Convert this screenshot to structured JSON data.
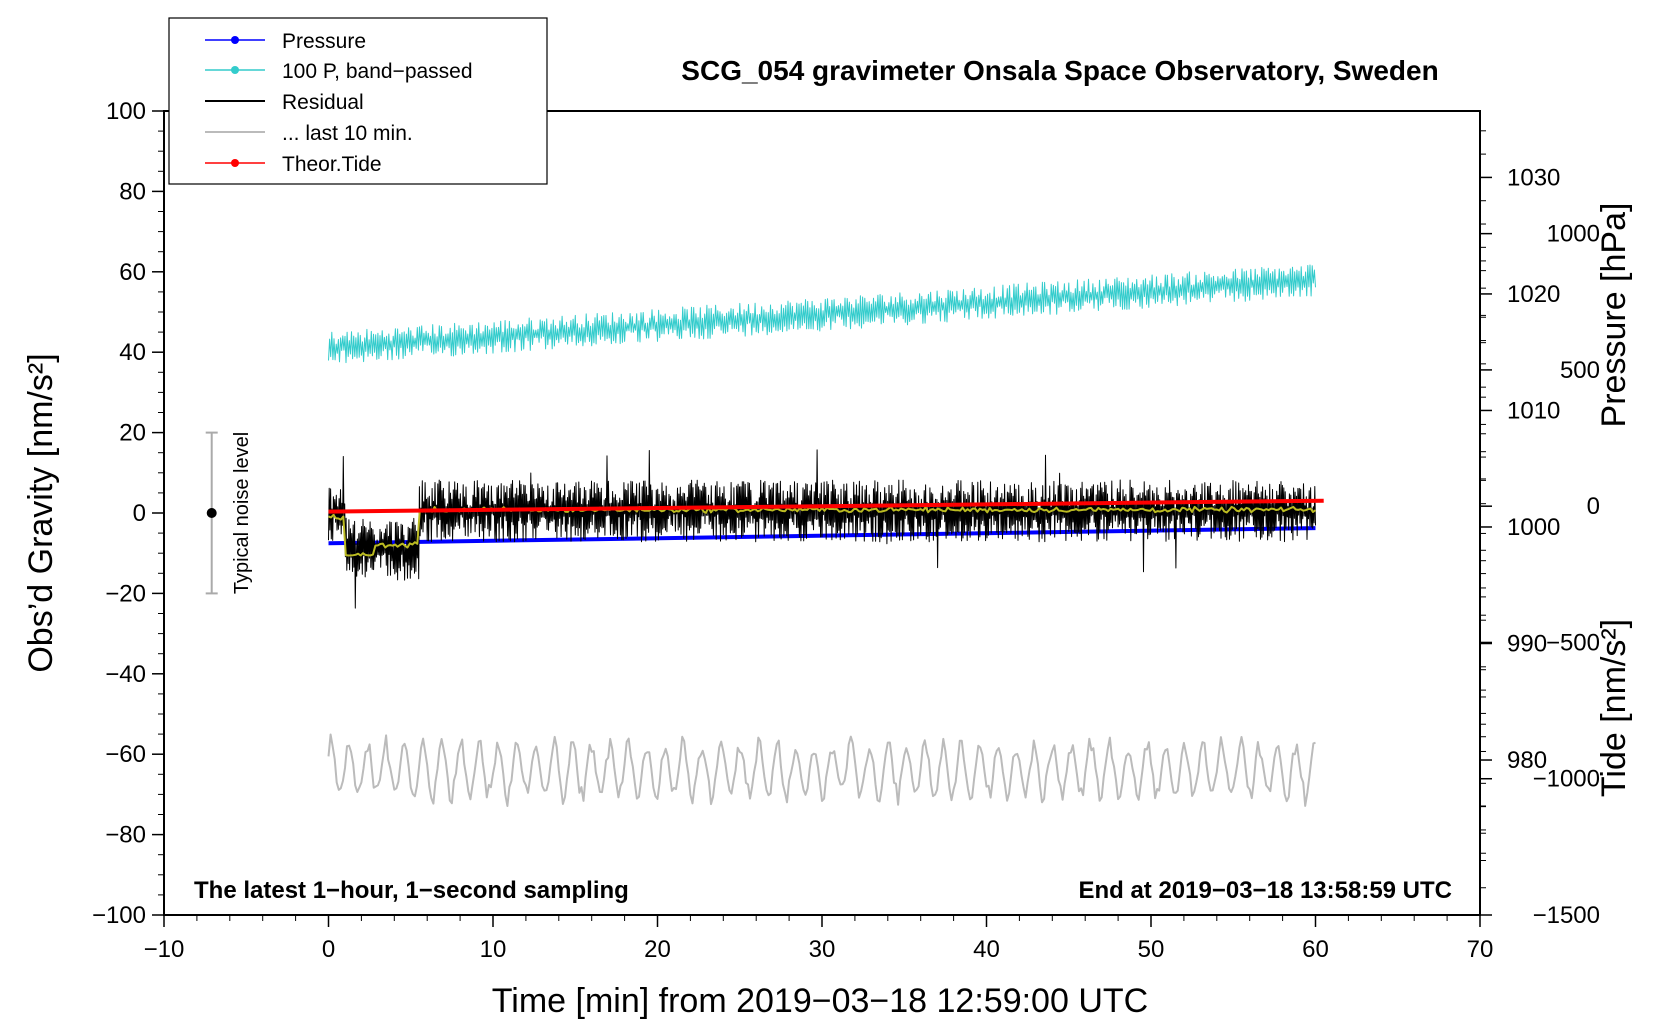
{
  "chart_data": {
    "type": "line",
    "title": "SCG_054 gravimeter Onsala Space Observatory, Sweden",
    "xlabel": "Time [min] from 2019−03−18 12:59:00 UTC",
    "ylabel_left": "Obs’d Gravity [nm/s²]",
    "ylabel_right_upper": "Pressure [hPa]",
    "ylabel_right_lower": "Tide [nm/s²]",
    "xlim": [
      -10,
      70
    ],
    "ylim": [
      -100,
      100
    ],
    "pressure_lim": [
      966.7,
      1035.7
    ],
    "tide_lim": [
      -1500,
      1450
    ],
    "x_ticks": [
      "−10",
      "0",
      "10",
      "20",
      "30",
      "40",
      "50",
      "60",
      "70"
    ],
    "y_ticks": [
      "−100",
      "−80",
      "−60",
      "−40",
      "−20",
      "0",
      "20",
      "40",
      "60",
      "80",
      "100"
    ],
    "pressure_ticks": [
      "980",
      "990",
      "1000",
      "1010",
      "1020",
      "1030"
    ],
    "tide_ticks": [
      "−1500",
      "−1000",
      "−500",
      "0",
      "500",
      "1000"
    ],
    "note_left": "The latest 1−hour, 1−second sampling",
    "note_right": "End at 2019−03−18 13:58:59 UTC",
    "noise_label": "Typical noise level",
    "noise_bar": {
      "x": -7.1,
      "center": 0,
      "low": -20,
      "high": 20
    },
    "legend": [
      {
        "label": "Pressure",
        "color": "#0000ff",
        "marker": true
      },
      {
        "label": "100 P, band−passed",
        "color": "#33cccc",
        "marker": true
      },
      {
        "label": "Residual",
        "color": "#000000",
        "marker": false
      },
      {
        "label": "... last 10 min.",
        "color": "#bbbbbb",
        "marker": false
      },
      {
        "label": "Theor.Tide",
        "color": "#ff0000",
        "marker": true
      }
    ],
    "series": [
      {
        "name": "Pressure",
        "axis": "pressure",
        "color": "#0000ff",
        "x_range": [
          0,
          60
        ],
        "start": 998.6,
        "end": 999.9
      },
      {
        "name": "100 P, band−passed",
        "axis": "left",
        "color": "#33cccc",
        "x_range": [
          0,
          60
        ],
        "trend_start": 41,
        "trend_end": 58,
        "noise_amplitude": 5
      },
      {
        "name": "Residual",
        "axis": "left",
        "color": "#000000",
        "x_range": [
          0,
          60
        ],
        "segments": [
          {
            "x": [
              0,
              1
            ],
            "level": 0
          },
          {
            "x": [
              1,
              5.5
            ],
            "level": -9
          },
          {
            "x": [
              5.5,
              60
            ],
            "level": 0.5
          }
        ],
        "noise_amplitude": 7
      },
      {
        "name": "Residual smoothed",
        "axis": "left",
        "color": "#bbbb22",
        "x_range": [
          0,
          60
        ],
        "segments": [
          {
            "x": [
              0,
              1
            ],
            "level": -1
          },
          {
            "x": [
              1,
              2.8
            ],
            "level": -10.5
          },
          {
            "x": [
              2.8,
              5.5
            ],
            "level": -8
          },
          {
            "x": [
              5.5,
              60
            ],
            "level": 0.8
          }
        ]
      },
      {
        "name": "... last 10 min.",
        "axis": "left",
        "color": "#bbbbbb",
        "x_range": [
          0,
          60
        ],
        "mean": -64,
        "amplitude": 6
      },
      {
        "name": "Theor.Tide",
        "axis": "tide",
        "color": "#ff0000",
        "x_range": [
          0,
          60.5
        ],
        "start": -20,
        "end": 20
      }
    ]
  }
}
